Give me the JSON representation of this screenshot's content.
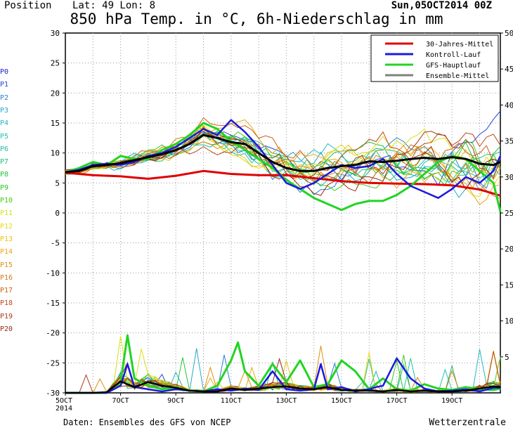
{
  "header": {
    "position_label": "Position",
    "lat_lon": "Lat: 49 Lon: 8",
    "run": "Sun,05OCT2014 00Z",
    "title": "850 hPa Temp. in °C, 6h-Niederschlag in mm"
  },
  "footer": {
    "source": "Daten: Ensembles des GFS von NCEP",
    "brand": "Wetterzentrale"
  },
  "members": [
    {
      "label": "P0",
      "color": "#2222cc"
    },
    {
      "label": "P1",
      "color": "#2244dd"
    },
    {
      "label": "P2",
      "color": "#2a7fd4"
    },
    {
      "label": "P3",
      "color": "#22a8c8"
    },
    {
      "label": "P4",
      "color": "#22b8c0"
    },
    {
      "label": "P5",
      "color": "#22c0b0"
    },
    {
      "label": "P6",
      "color": "#22bca0"
    },
    {
      "label": "P7",
      "color": "#22c07a"
    },
    {
      "label": "P8",
      "color": "#22c440"
    },
    {
      "label": "P9",
      "color": "#2ac822"
    },
    {
      "label": "P10",
      "color": "#44cc10"
    },
    {
      "label": "P11",
      "color": "#d8e010"
    },
    {
      "label": "P12",
      "color": "#e8d810"
    },
    {
      "label": "P13",
      "color": "#e8c010"
    },
    {
      "label": "P14",
      "color": "#e8a810"
    },
    {
      "label": "P15",
      "color": "#e09010"
    },
    {
      "label": "P16",
      "color": "#d87810"
    },
    {
      "label": "P17",
      "color": "#c86010"
    },
    {
      "label": "P18",
      "color": "#b84818"
    },
    {
      "label": "P19",
      "color": "#a83818"
    },
    {
      "label": "P20",
      "color": "#982818"
    }
  ],
  "chart_data": {
    "type": "line",
    "x_tick_labels": [
      "5OCT\n2014",
      "7OCT",
      "9OCT",
      "11OCT",
      "13OCT",
      "15OCT",
      "17OCT",
      "19OCT"
    ],
    "x_range_days": [
      5,
      20.75
    ],
    "y_left": {
      "min": -30,
      "max": 30,
      "ticks": [
        30,
        25,
        20,
        15,
        10,
        5,
        0,
        -5,
        -10,
        -15,
        -20,
        -25,
        -30
      ]
    },
    "y_right": {
      "min": 0,
      "max": 50,
      "ticks": [
        50,
        45,
        40,
        35,
        30,
        25,
        20,
        15,
        10,
        5
      ]
    },
    "grid": true,
    "legend_position": "top-right",
    "legend": [
      {
        "label": "30-Jahres-Mittel",
        "color": "#e00000"
      },
      {
        "label": "Kontroll-Lauf",
        "color": "#1a1ae0"
      },
      {
        "label": "GFS-Hauptlauf",
        "color": "#22d422"
      },
      {
        "label": "Ensemble-Mittel",
        "color": "#808080"
      }
    ],
    "climate_mean": {
      "x": [
        5,
        6,
        7,
        8,
        9,
        10,
        11,
        12,
        13,
        14,
        15,
        16,
        17,
        18,
        19,
        20,
        20.75
      ],
      "y": [
        6.7,
        6.3,
        6.1,
        5.7,
        6.2,
        7.0,
        6.5,
        6.3,
        6.3,
        5.8,
        5.3,
        5.0,
        4.9,
        4.8,
        4.6,
        3.9,
        2.9
      ]
    },
    "ensemble_mean_temp": {
      "x": [
        5,
        5.5,
        6,
        6.5,
        7,
        7.5,
        8,
        8.5,
        9,
        9.5,
        10,
        10.5,
        11,
        11.5,
        12,
        12.5,
        13,
        13.5,
        14,
        14.5,
        15,
        15.5,
        16,
        16.5,
        17,
        17.5,
        18,
        18.5,
        19,
        19.5,
        20,
        20.5,
        20.75
      ],
      "y": [
        6.8,
        7.0,
        7.8,
        8.0,
        8.3,
        8.8,
        9.3,
        9.8,
        10.5,
        11.5,
        13.0,
        12.5,
        11.8,
        11.5,
        10.0,
        8.5,
        7.5,
        7.0,
        7.0,
        7.5,
        7.8,
        8.0,
        8.6,
        8.5,
        8.7,
        9.0,
        9.2,
        9.0,
        9.3,
        9.0,
        8.2,
        8.0,
        8.5
      ]
    },
    "control_temp": {
      "x": [
        5,
        5.5,
        6,
        6.5,
        7,
        7.5,
        8,
        8.5,
        9,
        9.5,
        10,
        10.5,
        11,
        11.5,
        12,
        12.5,
        13,
        13.5,
        14,
        14.5,
        15,
        15.5,
        16,
        16.5,
        17,
        17.5,
        18,
        18.5,
        19,
        19.5,
        20,
        20.5,
        20.75
      ],
      "y": [
        6.8,
        7.2,
        8.0,
        8.2,
        8.0,
        8.5,
        9.5,
        10.0,
        11.0,
        12.5,
        14.0,
        13.0,
        15.5,
        13.5,
        11.0,
        8.0,
        5.0,
        4.0,
        5.0,
        6.5,
        8.0,
        7.5,
        7.8,
        9.0,
        6.5,
        4.5,
        3.5,
        2.5,
        4.0,
        6.0,
        5.0,
        7.0,
        9.5
      ]
    },
    "main_run_temp": {
      "x": [
        5,
        5.5,
        6,
        6.5,
        7,
        7.5,
        8,
        8.5,
        9,
        9.5,
        10,
        10.5,
        11,
        11.5,
        12,
        12.5,
        13,
        13.5,
        14,
        14.5,
        15,
        15.5,
        16,
        16.5,
        17,
        17.5,
        18,
        18.5,
        19,
        19.5,
        20,
        20.5,
        20.75
      ],
      "y": [
        6.8,
        7.5,
        8.5,
        8.0,
        9.5,
        9.0,
        9.0,
        10.5,
        11.5,
        13.0,
        15.0,
        14.0,
        12.0,
        10.5,
        9.0,
        7.5,
        5.5,
        4.0,
        2.5,
        1.5,
        0.5,
        1.5,
        2.0,
        2.0,
        3.0,
        4.5,
        6.5,
        8.5,
        9.5,
        9.0,
        7.0,
        5.0,
        0.2
      ]
    },
    "ensemble_mean_precip": {
      "x": [
        5,
        6,
        6.5,
        7,
        7.5,
        8,
        8.5,
        9,
        9.5,
        10,
        10.5,
        11,
        11.5,
        12,
        12.5,
        13,
        13.5,
        14,
        14.5,
        15,
        15.5,
        16,
        16.5,
        17,
        17.5,
        18,
        18.5,
        19,
        19.5,
        20,
        20.5,
        20.75
      ],
      "y": [
        0,
        0,
        0.1,
        1.6,
        0.8,
        1.5,
        1.0,
        0.7,
        0.3,
        0.2,
        0.2,
        0.6,
        0.4,
        0.6,
        0.8,
        0.9,
        0.6,
        0.5,
        0.8,
        0.4,
        0.3,
        0.3,
        0.2,
        0.4,
        0.2,
        0.3,
        0.2,
        0.2,
        0.3,
        0.6,
        0.9,
        0.8
      ]
    },
    "control_precip": {
      "x": [
        5,
        6,
        6.5,
        7,
        7.25,
        7.5,
        8,
        8.5,
        9,
        9.5,
        10,
        10.5,
        11,
        11.5,
        12,
        12.5,
        13,
        13.5,
        14,
        14.25,
        14.5,
        15,
        15.5,
        16,
        16.25,
        16.5,
        17,
        17.5,
        18,
        18.5,
        19,
        19.5,
        20,
        20.5,
        20.75
      ],
      "y": [
        0,
        0,
        0,
        1.0,
        4.0,
        0.8,
        0.5,
        0.2,
        0.5,
        0.3,
        0.2,
        0.5,
        0.3,
        0.6,
        0.4,
        3.0,
        0.5,
        0.3,
        0.5,
        4.0,
        0.5,
        0.8,
        0.2,
        0.5,
        0.8,
        1.0,
        4.8,
        2.0,
        0.6,
        0.2,
        0.3,
        0.5,
        0.2,
        0.7,
        0.7
      ]
    },
    "main_run_precip": {
      "x": [
        5,
        6,
        6.5,
        7,
        7.25,
        7.5,
        8,
        8.5,
        9,
        9.5,
        10,
        10.5,
        11,
        11.25,
        11.5,
        12,
        12.5,
        13,
        13.5,
        14,
        14.5,
        15,
        15.5,
        16,
        16.5,
        17,
        17.5,
        18,
        18.5,
        19,
        19.5,
        20,
        20.5,
        20.75
      ],
      "y": [
        0,
        0,
        0,
        1.5,
        8.0,
        2.0,
        1.0,
        0.5,
        0.8,
        0.3,
        0.2,
        1.0,
        4.5,
        7.0,
        3.0,
        1.0,
        4.0,
        1.5,
        4.5,
        0.8,
        1.2,
        4.5,
        3.0,
        0.5,
        2.0,
        0.5,
        0.3,
        1.2,
        0.6,
        0.4,
        0.8,
        0.5,
        0.4,
        0.6
      ]
    }
  }
}
